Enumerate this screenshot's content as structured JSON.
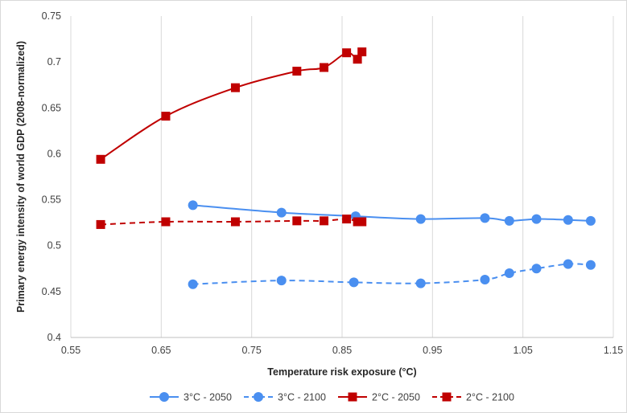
{
  "chart_data": {
    "type": "scatter",
    "title": "",
    "xlabel": "Temperature risk exposure (°C)",
    "ylabel": "Primary energy intensity of world GDP (2008-normalized)",
    "xlim": [
      0.55,
      1.15
    ],
    "ylim": [
      0.4,
      0.75
    ],
    "xticks": [
      "0.55",
      "0.65",
      "0.75",
      "0.85",
      "0.95",
      "1.05",
      "1.15"
    ],
    "yticks": [
      "0.4",
      "0.45",
      "0.5",
      "0.55",
      "0.6",
      "0.65",
      "0.7",
      "0.75"
    ],
    "grid": "vertical",
    "legend_position": "bottom",
    "series": [
      {
        "name": "3°C - 2050",
        "color": "#4a8ff0",
        "marker": "circle",
        "line": "solid",
        "points": [
          [
            0.685,
            0.544
          ],
          [
            0.783,
            0.536
          ],
          [
            0.865,
            0.532
          ],
          [
            0.937,
            0.529
          ],
          [
            1.008,
            0.53
          ],
          [
            1.035,
            0.527
          ],
          [
            1.065,
            0.529
          ],
          [
            1.1,
            0.528
          ],
          [
            1.125,
            0.527
          ]
        ]
      },
      {
        "name": "3°C - 2100",
        "color": "#4a8ff0",
        "marker": "circle",
        "line": "dashed",
        "points": [
          [
            0.685,
            0.458
          ],
          [
            0.783,
            0.462
          ],
          [
            0.863,
            0.46
          ],
          [
            0.937,
            0.459
          ],
          [
            1.008,
            0.463
          ],
          [
            1.035,
            0.47
          ],
          [
            1.065,
            0.475
          ],
          [
            1.1,
            0.48
          ],
          [
            1.125,
            0.479
          ]
        ]
      },
      {
        "name": "2°C - 2050",
        "color": "#c00000",
        "marker": "square",
        "line": "solid",
        "points": [
          [
            0.583,
            0.594
          ],
          [
            0.655,
            0.641
          ],
          [
            0.732,
            0.672
          ],
          [
            0.8,
            0.69
          ],
          [
            0.83,
            0.694
          ],
          [
            0.855,
            0.71
          ],
          [
            0.867,
            0.703
          ],
          [
            0.872,
            0.711
          ]
        ]
      },
      {
        "name": "2°C - 2100",
        "color": "#c00000",
        "marker": "square",
        "line": "dashed",
        "points": [
          [
            0.583,
            0.523
          ],
          [
            0.655,
            0.526
          ],
          [
            0.732,
            0.526
          ],
          [
            0.8,
            0.527
          ],
          [
            0.83,
            0.527
          ],
          [
            0.855,
            0.529
          ],
          [
            0.867,
            0.526
          ],
          [
            0.872,
            0.526
          ]
        ]
      }
    ]
  }
}
